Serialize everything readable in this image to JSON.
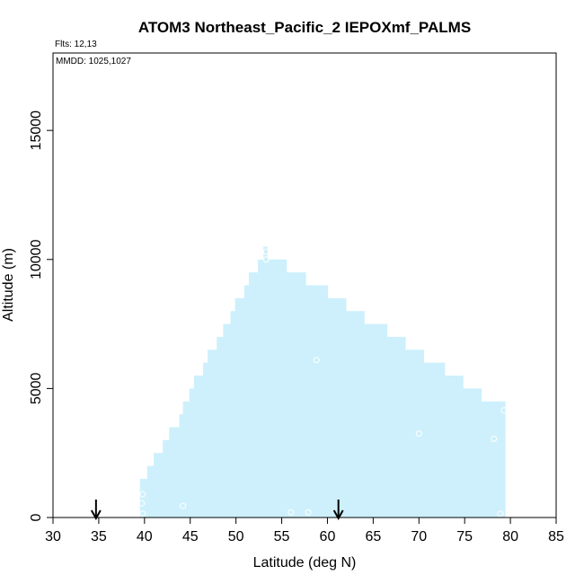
{
  "chart_data": {
    "type": "area",
    "title": "ATOM3 Northeast_Pacific_2 IEPOXmf_PALMS",
    "flights_text": "Flts: 12,13",
    "dates_text": "MMDD: 1025,1027",
    "xlabel": "Latitude (deg N)",
    "ylabel": "Altitude (m)",
    "xlim": [
      30,
      85
    ],
    "ylim": [
      0,
      18000
    ],
    "x_ticks": [
      30,
      35,
      40,
      45,
      50,
      55,
      60,
      65,
      70,
      75,
      80,
      85
    ],
    "y_ticks": [
      0,
      5000,
      10000,
      15000
    ],
    "fill_color": "#cdf0fc",
    "coverage_steps": [
      {
        "x": [
          39.5,
          40.3
        ],
        "top": 1500
      },
      {
        "x": [
          40.3,
          41.0
        ],
        "top": 2000
      },
      {
        "x": [
          41.0,
          42.0
        ],
        "top": 2500
      },
      {
        "x": [
          42.0,
          42.7
        ],
        "top": 3000
      },
      {
        "x": [
          42.7,
          43.8
        ],
        "top": 3500
      },
      {
        "x": [
          43.8,
          44.2
        ],
        "top": 4000
      },
      {
        "x": [
          44.2,
          44.9
        ],
        "top": 4500
      },
      {
        "x": [
          44.9,
          45.4
        ],
        "top": 5000
      },
      {
        "x": [
          45.4,
          46.4
        ],
        "top": 5500
      },
      {
        "x": [
          46.4,
          46.9
        ],
        "top": 6000
      },
      {
        "x": [
          46.9,
          47.9
        ],
        "top": 6500
      },
      {
        "x": [
          47.9,
          48.6
        ],
        "top": 7000
      },
      {
        "x": [
          48.6,
          49.4
        ],
        "top": 7500
      },
      {
        "x": [
          49.4,
          49.9
        ],
        "top": 8000
      },
      {
        "x": [
          49.9,
          50.9
        ],
        "top": 8500
      },
      {
        "x": [
          50.9,
          51.4
        ],
        "top": 9000
      },
      {
        "x": [
          51.4,
          52.4
        ],
        "top": 9500
      },
      {
        "x": [
          52.4,
          53.0
        ],
        "top": 10000
      },
      {
        "x": [
          53.0,
          53.4
        ],
        "top": 10500
      },
      {
        "x": [
          53.4,
          55.5
        ],
        "top": 10000
      },
      {
        "x": [
          55.5,
          57.6
        ],
        "top": 9500
      },
      {
        "x": [
          57.6,
          60.0
        ],
        "top": 9000
      },
      {
        "x": [
          60.0,
          62.0
        ],
        "top": 8500
      },
      {
        "x": [
          62.0,
          64.0
        ],
        "top": 8000
      },
      {
        "x": [
          64.0,
          66.5
        ],
        "top": 7500
      },
      {
        "x": [
          66.5,
          68.5
        ],
        "top": 7000
      },
      {
        "x": [
          68.5,
          70.5
        ],
        "top": 6500
      },
      {
        "x": [
          70.5,
          72.8
        ],
        "top": 6000
      },
      {
        "x": [
          72.8,
          74.8
        ],
        "top": 5500
      },
      {
        "x": [
          74.8,
          76.8
        ],
        "top": 5000
      },
      {
        "x": [
          76.8,
          79.0
        ],
        "top": 4500
      },
      {
        "x": [
          79.0,
          79.4
        ],
        "top": 4500
      }
    ],
    "points": [
      {
        "x": 39.8,
        "y": 900
      },
      {
        "x": 39.7,
        "y": 550
      },
      {
        "x": 39.8,
        "y": 150
      },
      {
        "x": 44.2,
        "y": 450
      },
      {
        "x": 53.3,
        "y": 10300
      },
      {
        "x": 53.3,
        "y": 10000
      },
      {
        "x": 56.0,
        "y": 200
      },
      {
        "x": 57.9,
        "y": 200
      },
      {
        "x": 58.8,
        "y": 6100
      },
      {
        "x": 70.0,
        "y": 3250
      },
      {
        "x": 78.2,
        "y": 3050
      },
      {
        "x": 78.9,
        "y": 150
      },
      {
        "x": 79.3,
        "y": 4150
      }
    ],
    "arrows": [
      {
        "x": 34.7
      },
      {
        "x": 61.2
      }
    ]
  }
}
